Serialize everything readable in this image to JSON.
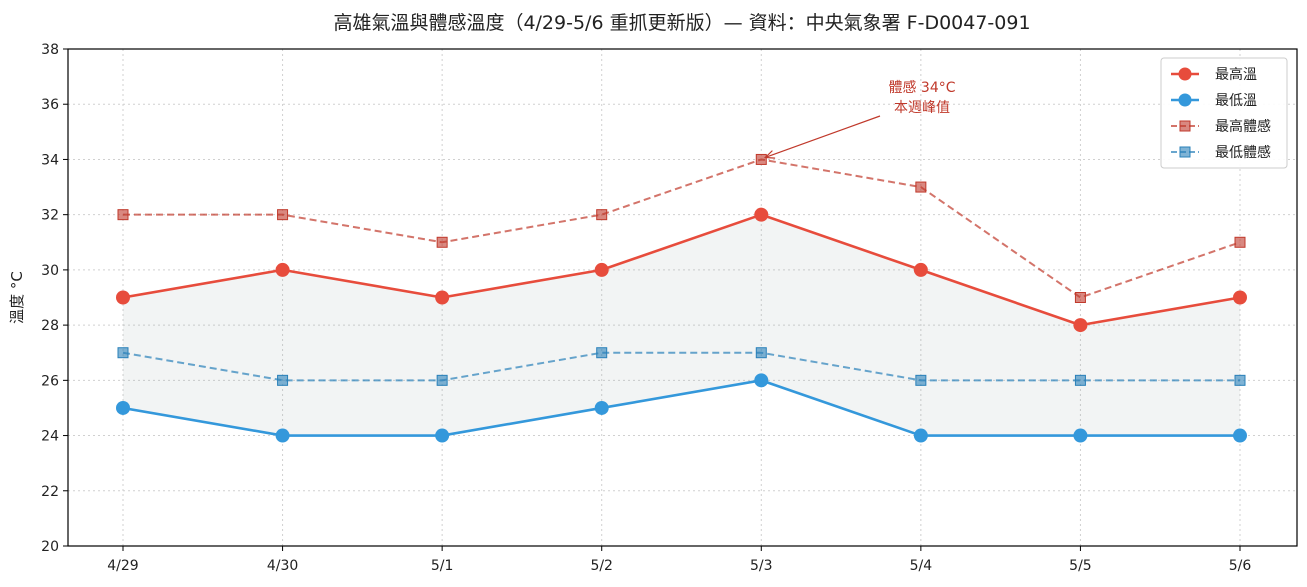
{
  "chart_data": {
    "type": "line",
    "title": "高雄氣溫與體感溫度（4/29-5/6 重抓更新版）— 資料：中央氣象署 F-D0047-091",
    "xlabel": "",
    "ylabel": "溫度 °C",
    "categories": [
      "4/29",
      "4/30",
      "5/1",
      "5/2",
      "5/3",
      "5/4",
      "5/5",
      "5/6"
    ],
    "ylim": [
      20,
      38
    ],
    "yticks": [
      20,
      22,
      24,
      26,
      28,
      30,
      32,
      34,
      36,
      38
    ],
    "grid": true,
    "legend_position": "top-right",
    "fill_between": {
      "upper": "最高溫",
      "lower": "最低溫",
      "color": "#95a5a6"
    },
    "series": [
      {
        "name": "最高溫",
        "values": [
          29,
          30,
          29,
          30,
          32,
          30,
          28,
          29
        ],
        "color": "#e74c3c",
        "style": "solid",
        "marker": "circle"
      },
      {
        "name": "最低溫",
        "values": [
          25,
          24,
          24,
          25,
          26,
          24,
          24,
          24
        ],
        "color": "#3498db",
        "style": "solid",
        "marker": "circle"
      },
      {
        "name": "最高體感",
        "values": [
          32,
          32,
          31,
          32,
          34,
          33,
          29,
          31
        ],
        "color": "#c0392b",
        "style": "dashed",
        "marker": "square"
      },
      {
        "name": "最低體感",
        "values": [
          27,
          26,
          26,
          27,
          27,
          26,
          26,
          26
        ],
        "color": "#2980b9",
        "style": "dashed",
        "marker": "square"
      }
    ],
    "annotations": [
      {
        "lines": [
          "體感 34°C",
          "本週峰值"
        ],
        "target_category": "5/3",
        "target_value": 34,
        "color": "#c0392b"
      }
    ]
  }
}
